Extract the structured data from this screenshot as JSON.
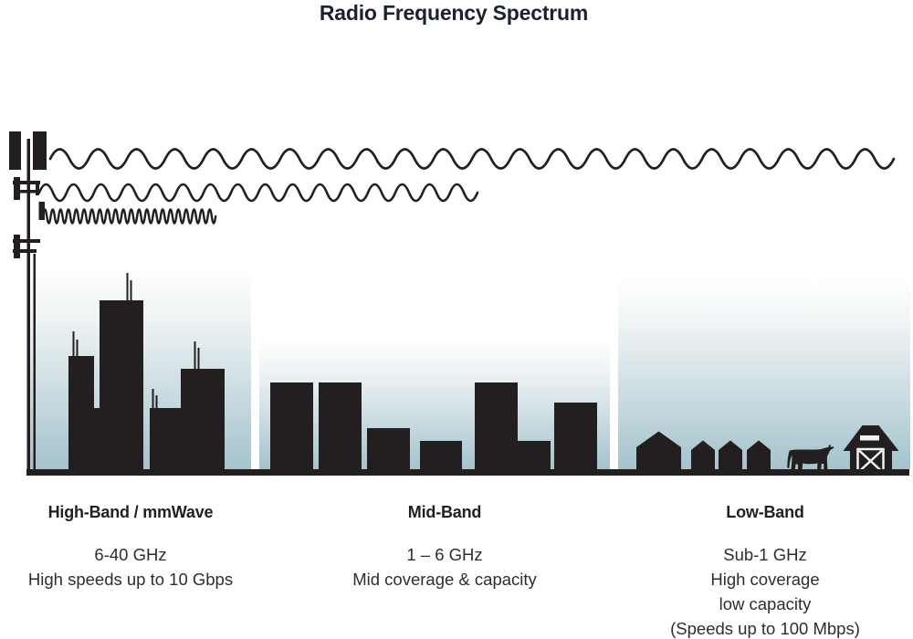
{
  "title": "Radio Frequency Spectrum",
  "colors": {
    "ink": "#231f20",
    "title_ink": "#1b2130",
    "sky_top": "#ffffff",
    "sky_bottom": "#a5c3cd"
  },
  "bands": {
    "high": {
      "name": "High-Band / mmWave",
      "freq": "6-40 GHz",
      "desc": "High speeds up to 10 Gbps"
    },
    "mid": {
      "name": "Mid-Band",
      "freq": "1 – 6 GHz",
      "desc": "Mid coverage & capacity"
    },
    "low": {
      "name": "Low-Band",
      "freq": "Sub-1 GHz",
      "desc1": "High coverage",
      "desc2": "low capacity",
      "desc3": "(Speeds up to 100 Mbps)"
    }
  },
  "icons": [
    "cell-tower-icon",
    "long-wavelength-wave-icon",
    "medium-wavelength-wave-icon",
    "short-wavelength-wave-icon",
    "city-skyline-icon",
    "suburb-skyline-icon",
    "house-icon",
    "cow-icon",
    "barn-icon"
  ]
}
